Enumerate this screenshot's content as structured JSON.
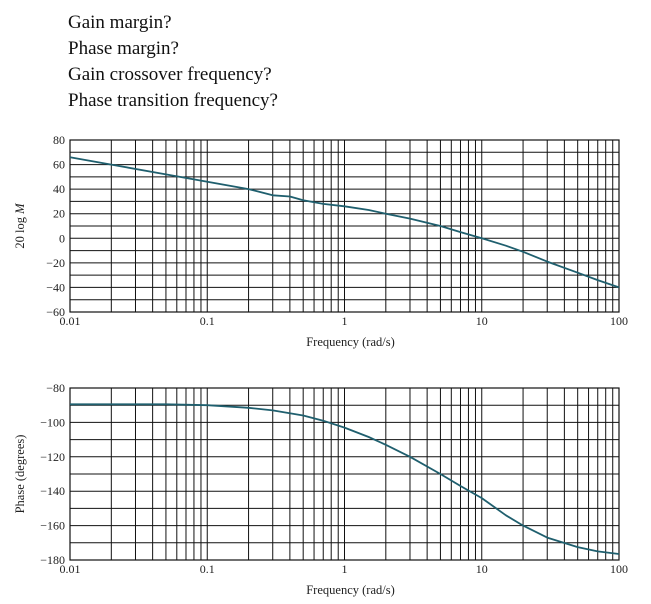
{
  "questions": [
    "Gain margin?",
    "Phase margin?",
    "Gain crossover frequency?",
    "Phase transition frequency?"
  ],
  "chart_data": [
    {
      "type": "line",
      "xscale": "log",
      "xlim": [
        0.01,
        100
      ],
      "ylim": [
        -60,
        80
      ],
      "xticks": [
        "0.01",
        "0.1",
        "1",
        "10",
        "100"
      ],
      "yticks": [
        "80",
        "60",
        "40",
        "20",
        "0",
        "−20",
        "−40",
        "−60"
      ],
      "xlabel": "Frequency (rad/s)",
      "ylabel": "20 log M",
      "grid": true,
      "line_color": "#1f5f6e",
      "series": [
        {
          "x": [
            0.01,
            0.02,
            0.05,
            0.1,
            0.2,
            0.3,
            0.4,
            0.5,
            0.7,
            1,
            1.5,
            2,
            3,
            5,
            7,
            10,
            15,
            20,
            30,
            50,
            70,
            100
          ],
          "y": [
            66,
            60,
            52,
            46,
            40,
            35,
            34,
            31,
            28,
            26,
            23,
            20,
            16,
            10,
            5,
            0,
            -6,
            -11,
            -19,
            -28,
            -34,
            -40
          ]
        }
      ]
    },
    {
      "type": "line",
      "xscale": "log",
      "xlim": [
        0.01,
        100
      ],
      "ylim": [
        -180,
        -80
      ],
      "xticks": [
        "0.01",
        "0.1",
        "1",
        "10",
        "100"
      ],
      "yticks": [
        "−80",
        "−100",
        "−120",
        "−140",
        "−160",
        "−180"
      ],
      "xlabel": "Frequency (rad/s)",
      "ylabel": "Phase (degrees)",
      "grid": true,
      "line_color": "#1f5f6e",
      "series": [
        {
          "x": [
            0.01,
            0.02,
            0.05,
            0.1,
            0.2,
            0.3,
            0.5,
            0.7,
            1,
            1.5,
            2,
            3,
            5,
            7,
            10,
            15,
            20,
            30,
            50,
            70,
            100
          ],
          "y": [
            -89.5,
            -89.5,
            -89.5,
            -90,
            -91.5,
            -93,
            -96,
            -99,
            -103,
            -108.5,
            -113,
            -120,
            -130,
            -137,
            -144,
            -154,
            -160,
            -167,
            -172.5,
            -175,
            -176.5
          ]
        }
      ]
    }
  ]
}
